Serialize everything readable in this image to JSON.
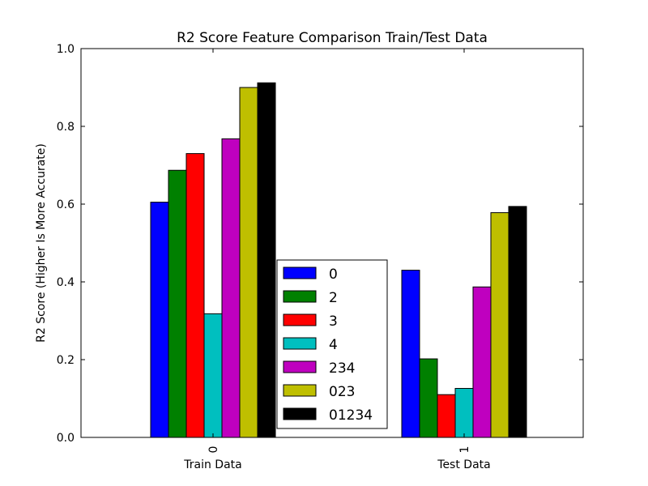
{
  "chart_data": {
    "type": "bar",
    "title": "R2 Score Feature Comparison Train/Test Data",
    "xlabel": "",
    "ylabel": "R2 Score (Higher Is More Accurate)",
    "categories": [
      "0",
      "1"
    ],
    "category_labels": [
      "Train Data",
      "Test Data"
    ],
    "ylim": [
      0,
      1.0
    ],
    "yticks": [
      "0.0",
      "0.2",
      "0.4",
      "0.6",
      "0.8",
      "1.0"
    ],
    "grid": false,
    "legend_position": "lower-center",
    "series": [
      {
        "name": "0",
        "color": "#0000ff",
        "values": [
          0.605,
          0.43
        ]
      },
      {
        "name": "2",
        "color": "#008000",
        "values": [
          0.687,
          0.202
        ]
      },
      {
        "name": "3",
        "color": "#ff0000",
        "values": [
          0.73,
          0.11
        ]
      },
      {
        "name": "4",
        "color": "#00bfbf",
        "values": [
          0.318,
          0.126
        ]
      },
      {
        "name": "234",
        "color": "#bf00bf",
        "values": [
          0.768,
          0.387
        ]
      },
      {
        "name": "023",
        "color": "#bfbf00",
        "values": [
          0.9,
          0.578
        ]
      },
      {
        "name": "01234",
        "color": "#000000",
        "values": [
          0.912,
          0.594
        ]
      }
    ]
  }
}
